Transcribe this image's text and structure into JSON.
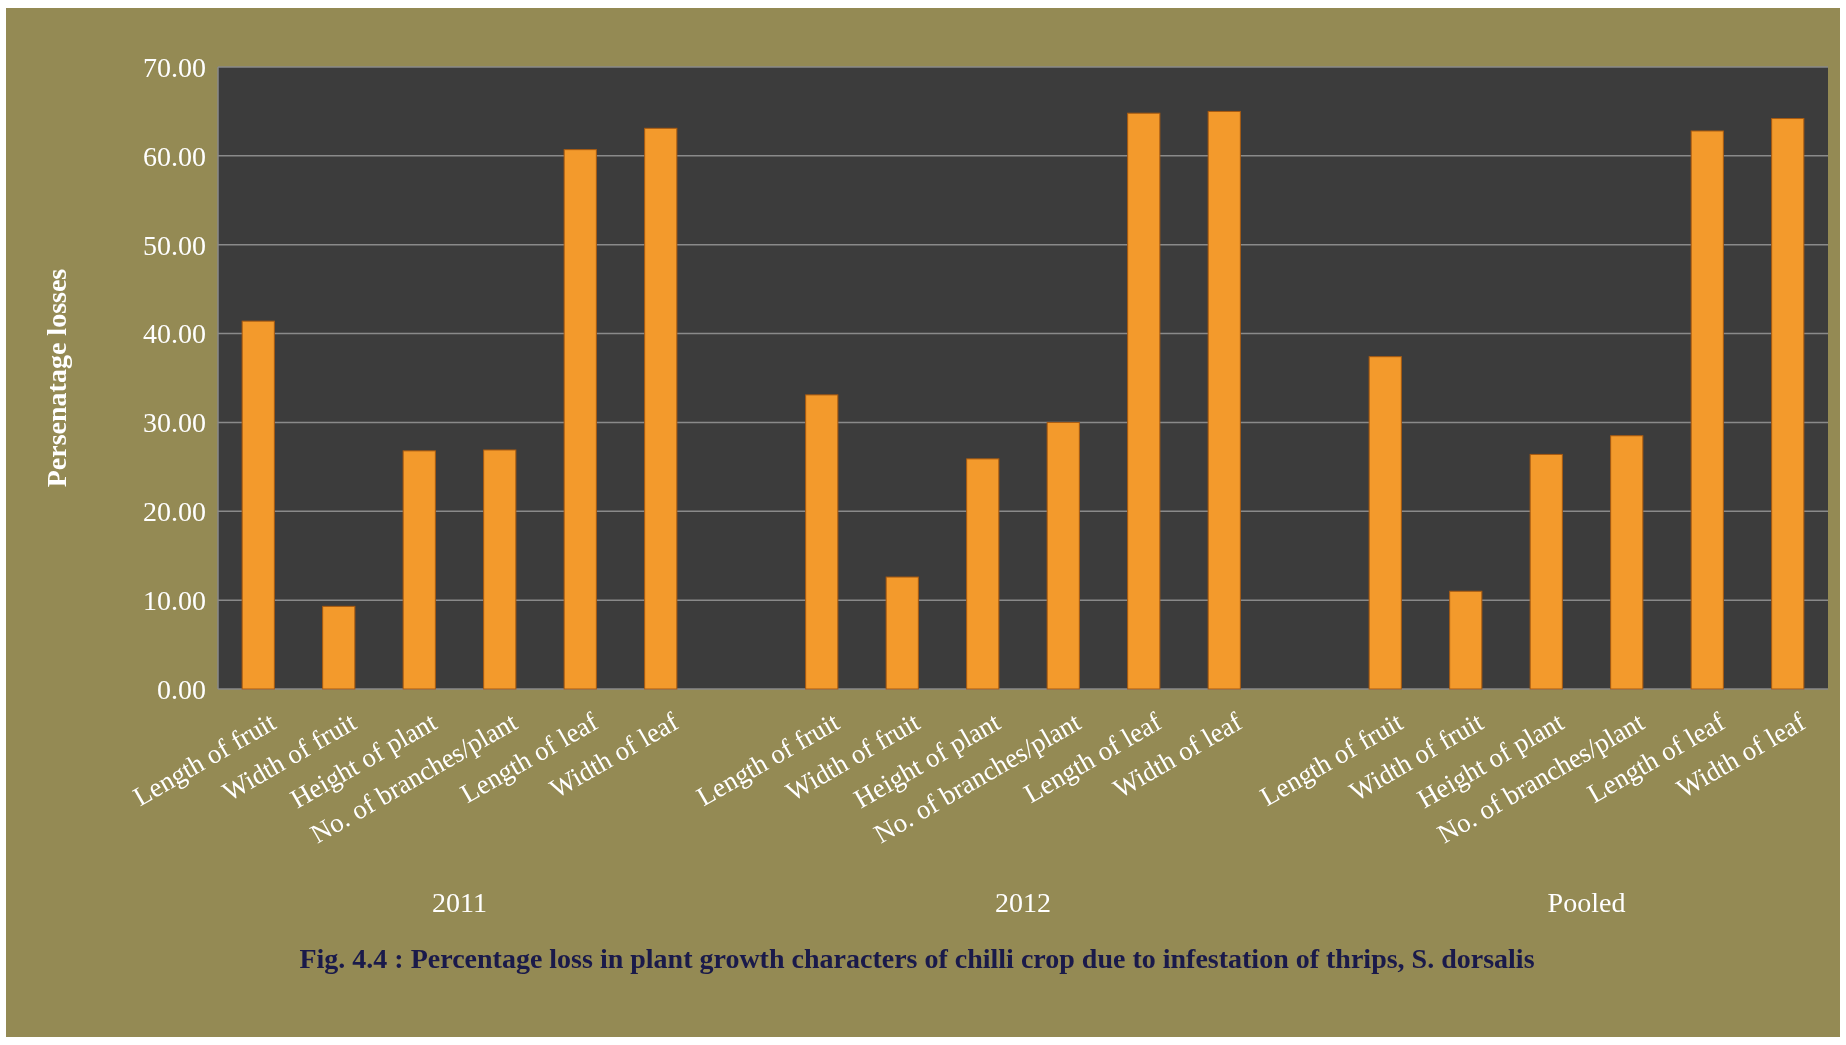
{
  "chart_data": {
    "type": "bar",
    "title": "Fig.  4.4 :  Percentage loss in plant growth characters of chilli crop due to infestation of thrips, S. dorsalis",
    "ylabel": "Persenatage losses",
    "categories": [
      "Length of fruit",
      "Width of fruit",
      "Height of plant",
      "No. of branches/plant",
      "Length of leaf",
      "Width of leaf",
      null,
      "Length of fruit",
      "Width of fruit",
      "Height of plant",
      "No. of branches/plant",
      "Length of leaf",
      "Width of leaf",
      null,
      "Length of fruit",
      "Width of fruit",
      "Height of plant",
      "No. of branches/plant",
      "Length of leaf",
      "Width of leaf"
    ],
    "values": [
      41.4,
      9.3,
      26.8,
      26.9,
      60.7,
      63.1,
      null,
      33.1,
      12.6,
      25.9,
      30.0,
      64.8,
      65.0,
      null,
      37.4,
      11.0,
      26.4,
      28.5,
      62.8,
      64.2
    ],
    "color": "#f39a2c",
    "ylim": [
      0,
      70
    ],
    "yticks": [
      {
        "value": 0,
        "label": "0.00"
      },
      {
        "value": 10,
        "label": "10.00"
      },
      {
        "value": 20,
        "label": "20.00"
      },
      {
        "value": 30,
        "label": "30.00"
      },
      {
        "value": 40,
        "label": "40.00"
      },
      {
        "value": 50,
        "label": "50.00"
      },
      {
        "value": 60,
        "label": "60.00"
      },
      {
        "value": 70,
        "label": "70.00"
      }
    ],
    "grid": "y",
    "annotations": [
      "2011",
      "2012",
      "Pooled"
    ]
  }
}
